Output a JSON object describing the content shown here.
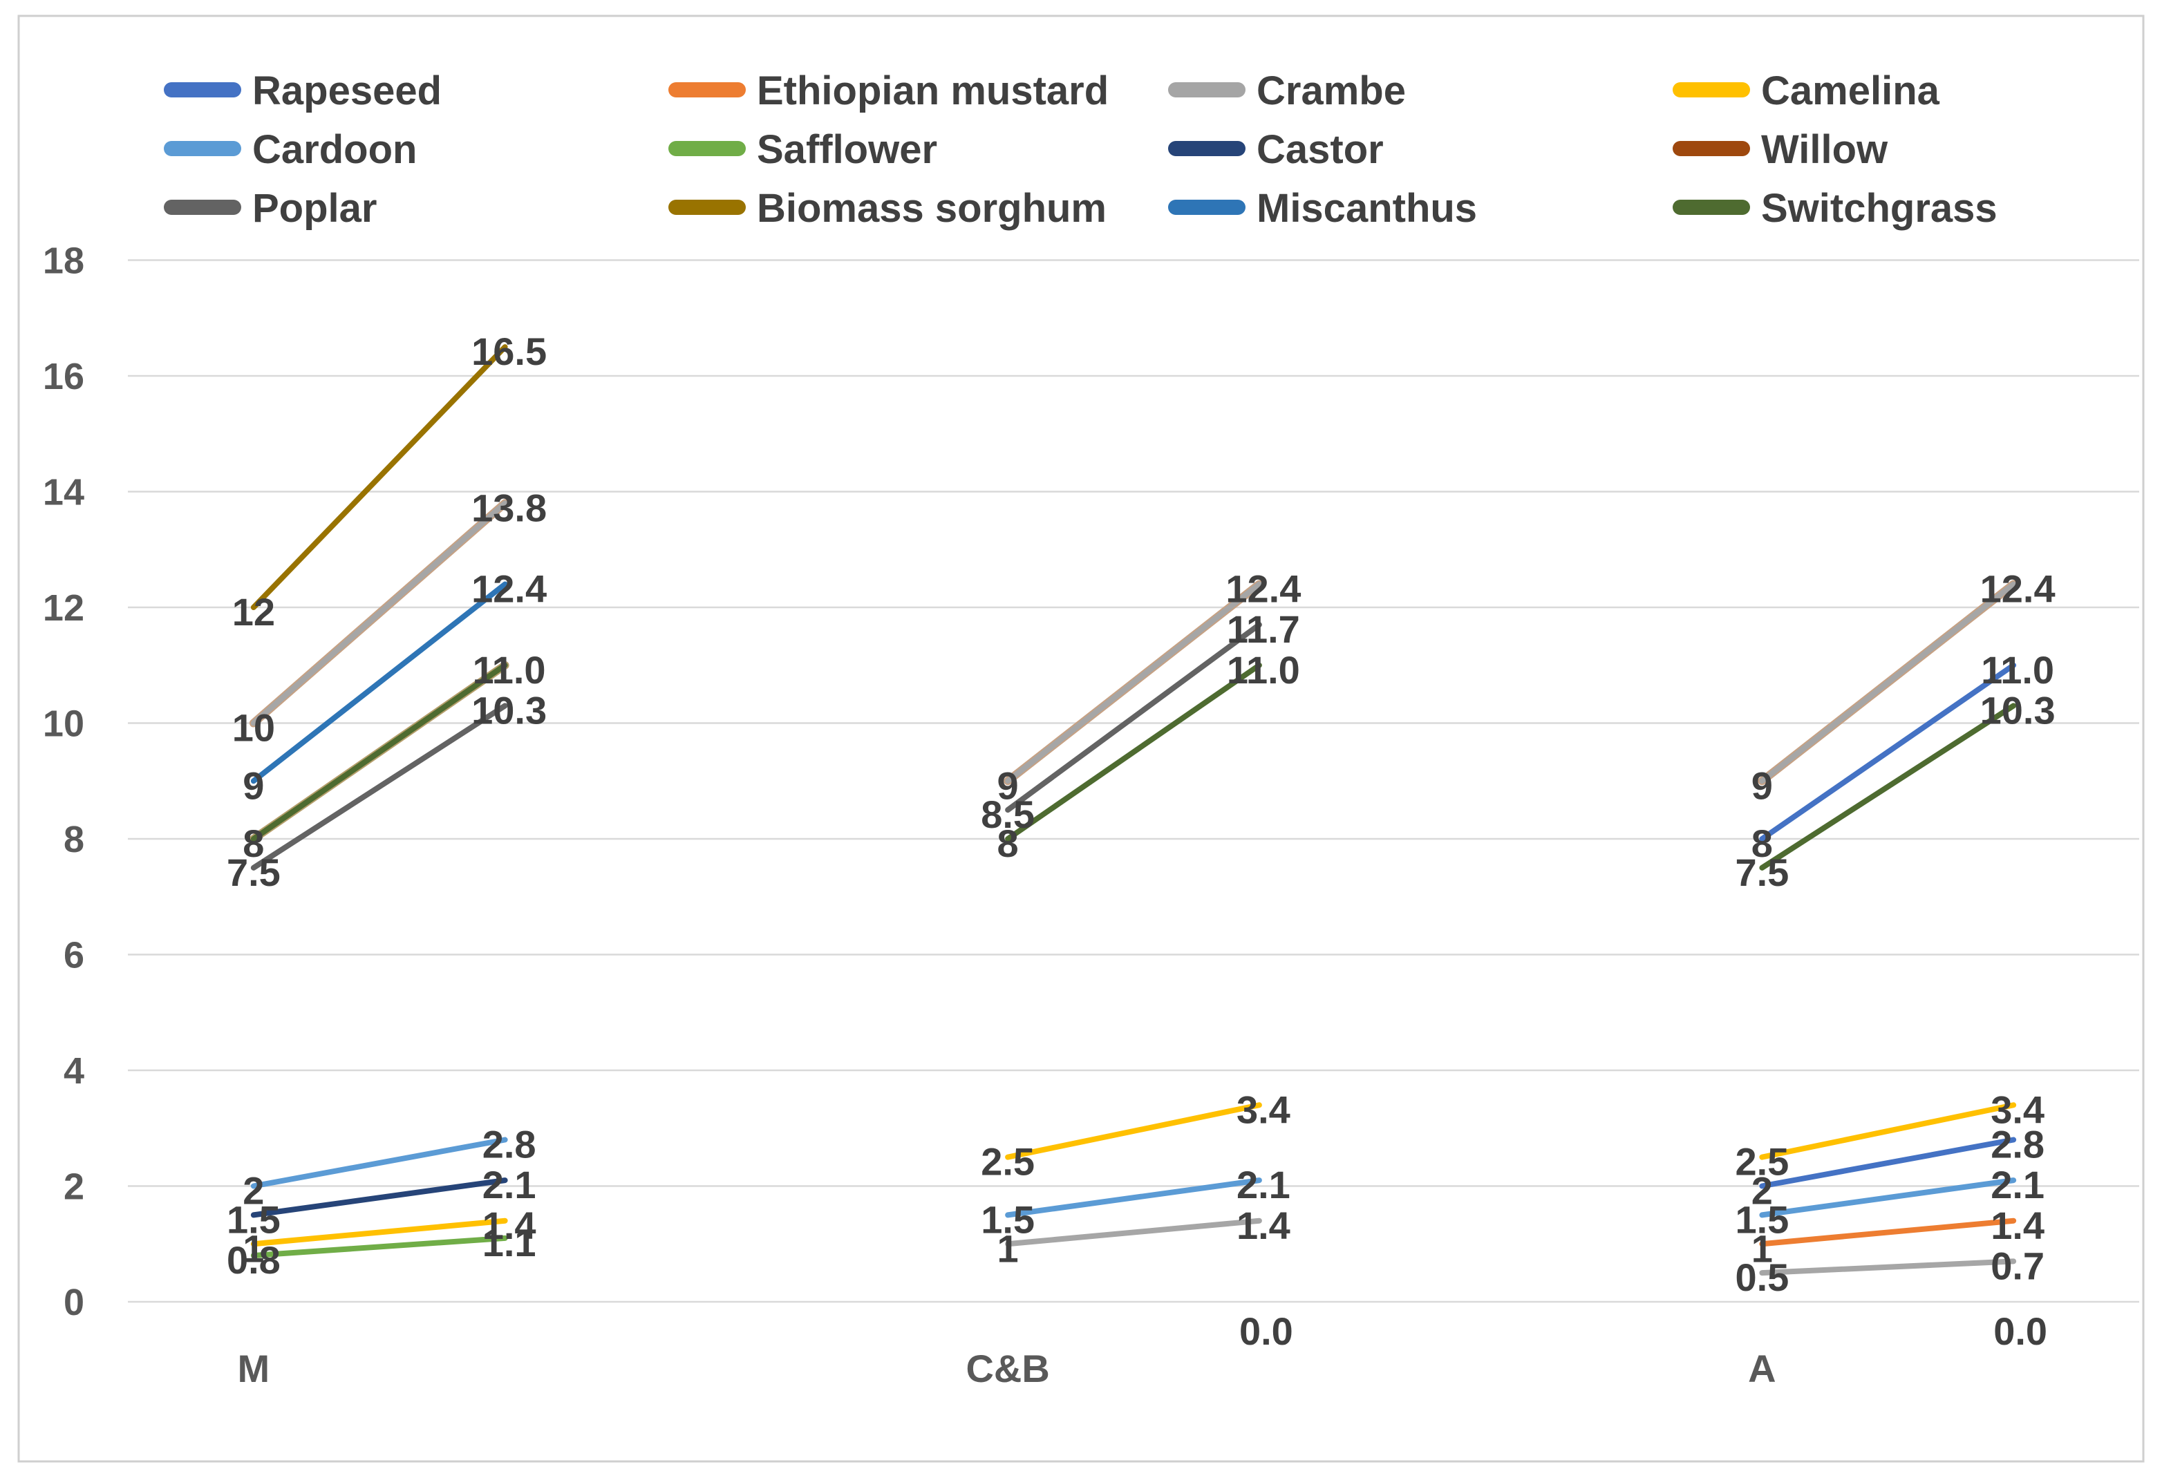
{
  "chart_data": {
    "type": "line",
    "variant": "paired-slope-segments",
    "title": "",
    "xlabel": "",
    "ylabel": "",
    "y_axis": {
      "min": 0,
      "max": 18,
      "tick_step": 2,
      "ticks": [
        0,
        2,
        4,
        6,
        8,
        10,
        12,
        14,
        16,
        18
      ],
      "gridlines": true,
      "gridline_color": "#D9D9D9",
      "tick_label_color": "#595959"
    },
    "x_categories": [
      "M",
      "C&B",
      "A"
    ],
    "category_label_color": "#595959",
    "data_label_color": "#404040",
    "legend": {
      "position": "top",
      "columns": 4,
      "text_color": "#404040",
      "items": [
        {
          "name": "Rapeseed",
          "color": "#4472C4"
        },
        {
          "name": "Ethiopian mustard",
          "color": "#ED7D31"
        },
        {
          "name": "Crambe",
          "color": "#A5A5A5"
        },
        {
          "name": "Camelina",
          "color": "#FFC000"
        },
        {
          "name": "Cardoon",
          "color": "#5B9BD5"
        },
        {
          "name": "Safflower",
          "color": "#70AD47"
        },
        {
          "name": "Castor",
          "color": "#264478"
        },
        {
          "name": "Willow",
          "color": "#9E480E"
        },
        {
          "name": "Poplar",
          "color": "#636363"
        },
        {
          "name": "Biomass sorghum",
          "color": "#997300"
        },
        {
          "name": "Miscanthus",
          "color": "#2E75B6"
        },
        {
          "name": "Switchgrass",
          "color": "#4E6B30"
        }
      ]
    },
    "clusters": [
      {
        "category": "M",
        "lines": [
          {
            "series": "Biomass sorghum",
            "color": "#997300",
            "start": 12,
            "end": 16.5,
            "start_label": "12",
            "end_label": "16.5"
          },
          {
            "series": "Crambe",
            "color": "#A6A6A6",
            "start": 10,
            "end": 13.8,
            "start_label": "10",
            "end_label": "13.8",
            "fringe": "#C7A183"
          },
          {
            "series": "Miscanthus",
            "color": "#2E75B6",
            "start": 9,
            "end": 12.4,
            "start_label": "9",
            "end_label": "12.4"
          },
          {
            "series": "Switchgrass",
            "color": "#4E6B30",
            "start": 8,
            "end": 11.0,
            "start_label": "8",
            "end_label": "11.0",
            "fringe": "#B59E6B"
          },
          {
            "series": "Poplar",
            "color": "#636363",
            "start": 7.5,
            "end": 10.3,
            "start_label": "7.5",
            "end_label": "10.3"
          },
          {
            "series": "Cardoon",
            "color": "#5B9BD5",
            "start": 2,
            "end": 2.8,
            "start_label": "2",
            "end_label": "2.8"
          },
          {
            "series": "Castor",
            "color": "#264478",
            "start": 1.5,
            "end": 2.1,
            "start_label": "1.5",
            "end_label": "2.1"
          },
          {
            "series": "Camelina",
            "color": "#FFC000",
            "start": 1,
            "end": 1.4,
            "start_label": "1",
            "end_label": "1.4"
          },
          {
            "series": "Safflower",
            "color": "#70AD47",
            "start": 0.8,
            "end": 1.1,
            "start_label": "0.8",
            "end_label": "1.1"
          }
        ],
        "extra_labels": []
      },
      {
        "category": "C&B",
        "lines": [
          {
            "series": "Crambe",
            "color": "#A6A6A6",
            "start": 9,
            "end": 12.4,
            "start_label": "9",
            "end_label": "12.4",
            "fringe": "#C7A183"
          },
          {
            "series": "Poplar",
            "color": "#636363",
            "start": 8.5,
            "end": 11.7,
            "start_label": "8.5",
            "end_label": "11.7"
          },
          {
            "series": "Switchgrass",
            "color": "#4E6B30",
            "start": 8,
            "end": 11.0,
            "start_label": "8",
            "end_label": "11.0"
          },
          {
            "series": "Camelina",
            "color": "#FFC000",
            "start": 2.5,
            "end": 3.4,
            "start_label": "2.5",
            "end_label": "3.4"
          },
          {
            "series": "Cardoon",
            "color": "#5B9BD5",
            "start": 1.5,
            "end": 2.1,
            "start_label": "1.5",
            "end_label": "2.1"
          },
          {
            "series": "Crambe",
            "color": "#A6A6A6",
            "start": 1,
            "end": 1.4,
            "start_label": "1",
            "end_label": "1.4"
          }
        ],
        "extra_labels": [
          {
            "text": "0.0",
            "value": 0,
            "position": "end"
          }
        ]
      },
      {
        "category": "A",
        "lines": [
          {
            "series": "Crambe",
            "color": "#A6A6A6",
            "start": 9,
            "end": 12.4,
            "start_label": "9",
            "end_label": "12.4",
            "fringe": "#C7A183"
          },
          {
            "series": "Rapeseed",
            "color": "#4472C4",
            "start": 8,
            "end": 11.0,
            "start_label": "8",
            "end_label": "11.0"
          },
          {
            "series": "Switchgrass",
            "color": "#4E6B30",
            "start": 7.5,
            "end": 10.3,
            "start_label": "7.5",
            "end_label": "10.3"
          },
          {
            "series": "Camelina",
            "color": "#FFC000",
            "start": 2.5,
            "end": 3.4,
            "start_label": "2.5",
            "end_label": "3.4"
          },
          {
            "series": "Rapeseed",
            "color": "#4472C4",
            "start": 2,
            "end": 2.8,
            "start_label": "2",
            "end_label": "2.8"
          },
          {
            "series": "Cardoon",
            "color": "#5B9BD5",
            "start": 1.5,
            "end": 2.1,
            "start_label": "1.5",
            "end_label": "2.1"
          },
          {
            "series": "Ethiopian mustard",
            "color": "#ED7D31",
            "start": 1,
            "end": 1.4,
            "start_label": "1",
            "end_label": "1.4"
          },
          {
            "series": "Crambe",
            "color": "#A6A6A6",
            "start": 0.5,
            "end": 0.7,
            "start_label": "0.5",
            "end_label": "0.7"
          }
        ],
        "extra_labels": [
          {
            "text": "0.0",
            "value": 0,
            "position": "end"
          }
        ]
      }
    ]
  }
}
